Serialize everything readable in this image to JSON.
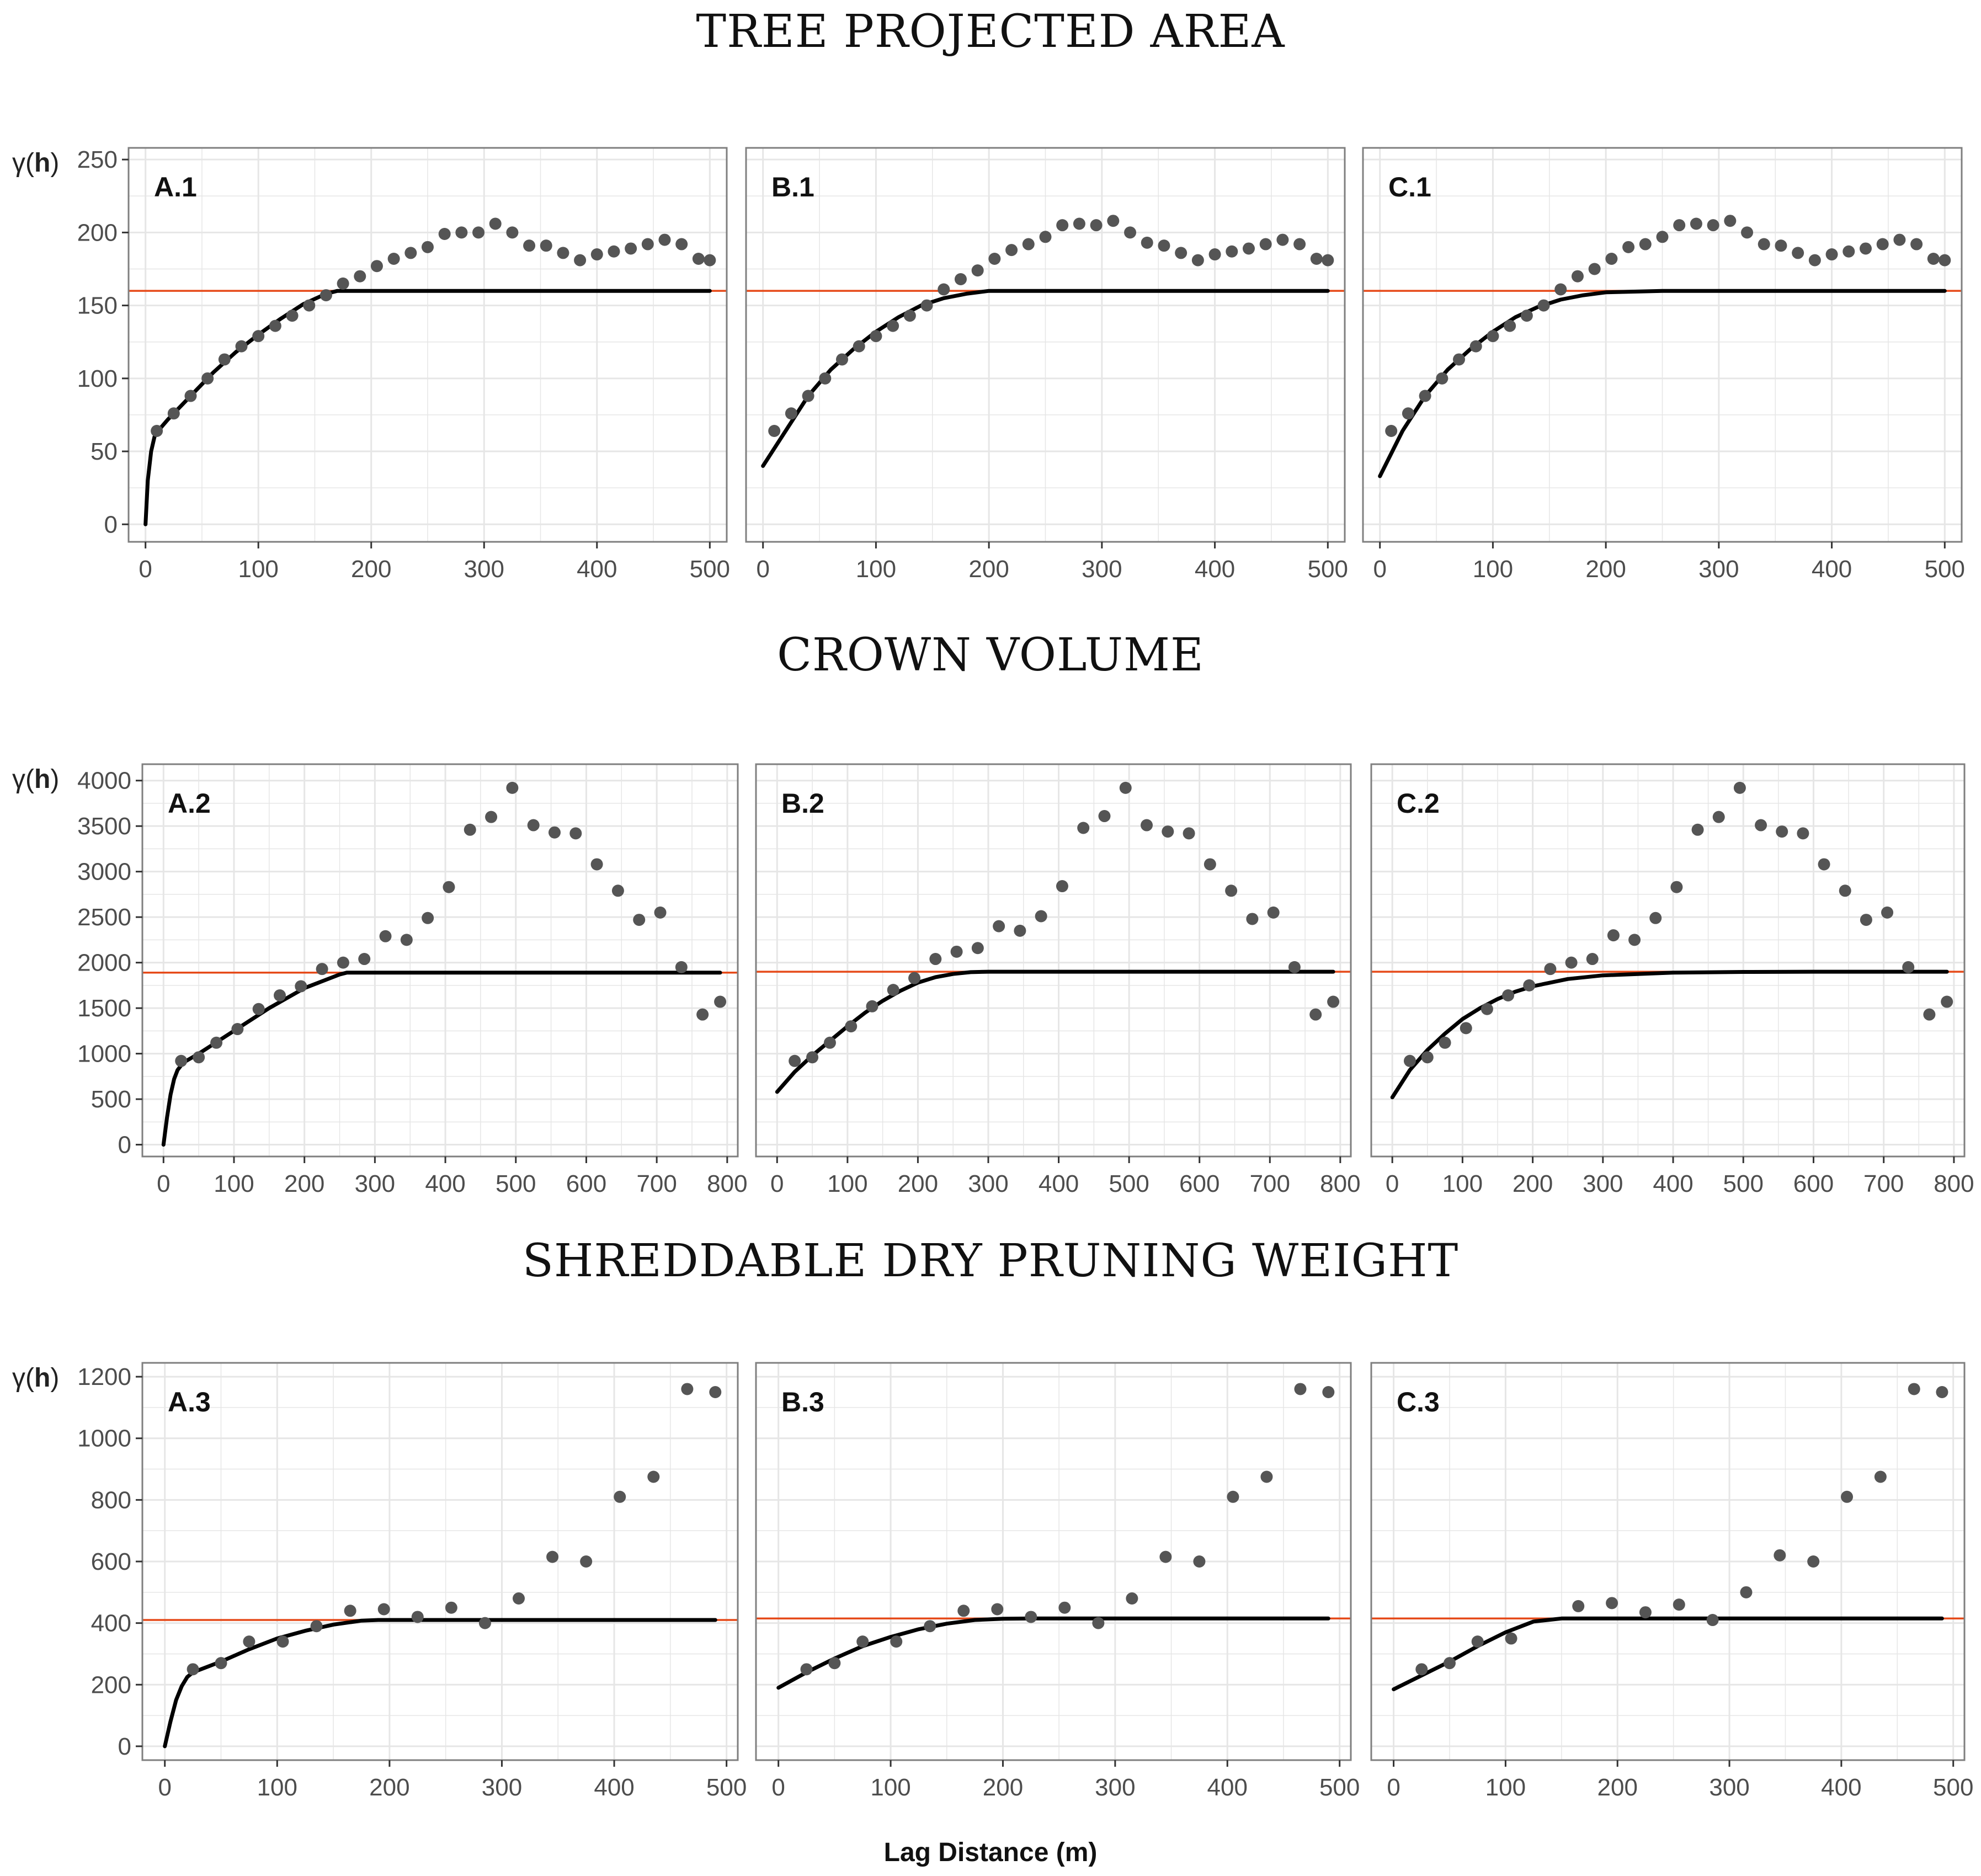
{
  "colors": {
    "points": "#555555",
    "fit": "#000000",
    "sill": "#e64a19",
    "grid": "#e6e6e6",
    "border": "#7f7f7f",
    "text": "#4d4d4d"
  },
  "sections": [
    {
      "title": "TREE PROJECTED AREA",
      "ylabel_prefix": "γ(",
      "ylabel_bold": "h",
      "ylabel_suffix": ")"
    },
    {
      "title": "CROWN VOLUME",
      "ylabel_prefix": "γ(",
      "ylabel_bold": "h",
      "ylabel_suffix": ")"
    },
    {
      "title": "SHREDDABLE DRY PRUNING WEIGHT",
      "ylabel_prefix": "γ(",
      "ylabel_bold": "h",
      "ylabel_suffix": ")"
    }
  ],
  "x_axis_label": "Lag Distance (m)",
  "chart_data": [
    {
      "type": "scatter",
      "title": "A.1",
      "row": 0,
      "col": 0,
      "xlim": [
        -15,
        515
      ],
      "ylim": [
        -12,
        258
      ],
      "xticks": [
        0,
        100,
        200,
        300,
        400,
        500
      ],
      "yticks": [
        0,
        50,
        100,
        150,
        200,
        250
      ],
      "x": [
        10,
        25,
        40,
        55,
        70,
        85,
        100,
        115,
        130,
        145,
        160,
        175,
        190,
        205,
        220,
        235,
        250,
        265,
        280,
        295,
        310,
        325,
        340,
        355,
        370,
        385,
        400,
        415,
        430,
        445,
        460,
        475,
        490,
        500
      ],
      "y": [
        64,
        76,
        88,
        100,
        113,
        122,
        129,
        136,
        143,
        150,
        157,
        165,
        170,
        177,
        182,
        186,
        190,
        199,
        200,
        200,
        206,
        200,
        191,
        191,
        186,
        181,
        185,
        187,
        189,
        192,
        195,
        192,
        182,
        181
      ],
      "sill": 160,
      "fit": {
        "x": [
          0,
          2,
          5,
          8,
          10,
          20,
          40,
          60,
          80,
          100,
          120,
          140,
          160,
          170,
          200,
          300,
          400,
          500
        ],
        "y": [
          0,
          30,
          50,
          60,
          63,
          72,
          88,
          104,
          118,
          130,
          141,
          151,
          158,
          160,
          160,
          160,
          160,
          160
        ]
      }
    },
    {
      "type": "scatter",
      "title": "B.1",
      "row": 0,
      "col": 1,
      "xlim": [
        -15,
        515
      ],
      "ylim": [
        -12,
        258
      ],
      "xticks": [
        0,
        100,
        200,
        300,
        400,
        500
      ],
      "yticks": [
        0,
        50,
        100,
        150,
        200,
        250
      ],
      "x": [
        10,
        25,
        40,
        55,
        70,
        85,
        100,
        115,
        130,
        145,
        160,
        175,
        190,
        205,
        220,
        235,
        250,
        265,
        280,
        295,
        310,
        325,
        340,
        355,
        370,
        385,
        400,
        415,
        430,
        445,
        460,
        475,
        490,
        500
      ],
      "y": [
        64,
        76,
        88,
        100,
        113,
        122,
        129,
        136,
        143,
        150,
        161,
        168,
        174,
        182,
        188,
        192,
        197,
        205,
        206,
        205,
        208,
        200,
        193,
        191,
        186,
        181,
        185,
        187,
        189,
        192,
        195,
        192,
        182,
        181
      ],
      "sill": 160,
      "fit": {
        "x": [
          0,
          20,
          40,
          60,
          80,
          100,
          120,
          140,
          160,
          180,
          200,
          250,
          300,
          400,
          500
        ],
        "y": [
          40,
          64,
          88,
          106,
          120,
          132,
          142,
          150,
          155,
          158,
          160,
          160,
          160,
          160,
          160
        ]
      }
    },
    {
      "type": "scatter",
      "title": "C.1",
      "row": 0,
      "col": 2,
      "xlim": [
        -15,
        515
      ],
      "ylim": [
        -12,
        258
      ],
      "xticks": [
        0,
        100,
        200,
        300,
        400,
        500
      ],
      "yticks": [
        0,
        50,
        100,
        150,
        200,
        250
      ],
      "x": [
        10,
        25,
        40,
        55,
        70,
        85,
        100,
        115,
        130,
        145,
        160,
        175,
        190,
        205,
        220,
        235,
        250,
        265,
        280,
        295,
        310,
        325,
        340,
        355,
        370,
        385,
        400,
        415,
        430,
        445,
        460,
        475,
        490,
        500
      ],
      "y": [
        64,
        76,
        88,
        100,
        113,
        122,
        129,
        136,
        143,
        150,
        161,
        170,
        175,
        182,
        190,
        192,
        197,
        205,
        206,
        205,
        208,
        200,
        192,
        191,
        186,
        181,
        185,
        187,
        189,
        192,
        195,
        192,
        182,
        181
      ],
      "sill": 160,
      "fit": {
        "x": [
          0,
          20,
          40,
          60,
          80,
          100,
          120,
          140,
          160,
          180,
          200,
          250,
          300,
          400,
          500
        ],
        "y": [
          33,
          64,
          88,
          106,
          120,
          132,
          142,
          149,
          154,
          157,
          159,
          160,
          160,
          160,
          160
        ]
      }
    },
    {
      "type": "scatter",
      "title": "A.2",
      "row": 1,
      "col": 0,
      "xlim": [
        -30,
        815
      ],
      "ylim": [
        -130,
        4180
      ],
      "xticks": [
        0,
        100,
        200,
        300,
        400,
        500,
        600,
        700,
        800
      ],
      "yticks": [
        0,
        500,
        1000,
        1500,
        2000,
        2500,
        3000,
        3500,
        4000
      ],
      "x": [
        25,
        50,
        75,
        105,
        135,
        165,
        195,
        225,
        255,
        285,
        315,
        345,
        375,
        405,
        435,
        465,
        495,
        525,
        555,
        585,
        615,
        645,
        675,
        705,
        735,
        765,
        790
      ],
      "y": [
        920,
        960,
        1120,
        1270,
        1490,
        1640,
        1740,
        1930,
        2000,
        2040,
        2290,
        2250,
        2490,
        2830,
        3460,
        3600,
        3920,
        3510,
        3430,
        3420,
        3080,
        2790,
        2470,
        2550,
        1950,
        1430,
        1570
      ],
      "sill": 1890,
      "fit": {
        "x": [
          0,
          5,
          10,
          15,
          20,
          25,
          30,
          50,
          100,
          150,
          200,
          250,
          260,
          300,
          400,
          500,
          600,
          700,
          790
        ],
        "y": [
          0,
          300,
          550,
          720,
          820,
          870,
          910,
          1000,
          1250,
          1500,
          1720,
          1870,
          1890,
          1890,
          1890,
          1890,
          1890,
          1890,
          1890
        ]
      }
    },
    {
      "type": "scatter",
      "title": "B.2",
      "row": 1,
      "col": 1,
      "xlim": [
        -30,
        815
      ],
      "ylim": [
        -130,
        4180
      ],
      "xticks": [
        0,
        100,
        200,
        300,
        400,
        500,
        600,
        700,
        800
      ],
      "yticks": [
        0,
        500,
        1000,
        1500,
        2000,
        2500,
        3000,
        3500,
        4000
      ],
      "x": [
        25,
        50,
        75,
        105,
        135,
        165,
        195,
        225,
        255,
        285,
        315,
        345,
        375,
        405,
        435,
        465,
        495,
        525,
        555,
        585,
        615,
        645,
        675,
        705,
        735,
        765,
        790
      ],
      "y": [
        920,
        960,
        1120,
        1300,
        1520,
        1700,
        1830,
        2040,
        2120,
        2160,
        2400,
        2350,
        2510,
        2840,
        3480,
        3610,
        3920,
        3510,
        3440,
        3420,
        3080,
        2790,
        2480,
        2550,
        1950,
        1430,
        1570
      ],
      "sill": 1900,
      "fit": {
        "x": [
          0,
          25,
          50,
          75,
          100,
          125,
          150,
          175,
          200,
          225,
          250,
          275,
          300,
          400,
          500,
          600,
          700,
          790
        ],
        "y": [
          580,
          800,
          980,
          1140,
          1300,
          1450,
          1580,
          1690,
          1780,
          1840,
          1875,
          1895,
          1900,
          1900,
          1900,
          1900,
          1900,
          1900
        ]
      }
    },
    {
      "type": "scatter",
      "title": "C.2",
      "row": 1,
      "col": 2,
      "xlim": [
        -30,
        815
      ],
      "ylim": [
        -130,
        4180
      ],
      "xticks": [
        0,
        100,
        200,
        300,
        400,
        500,
        600,
        700,
        800
      ],
      "yticks": [
        0,
        500,
        1000,
        1500,
        2000,
        2500,
        3000,
        3500,
        4000
      ],
      "x": [
        25,
        50,
        75,
        105,
        135,
        165,
        195,
        225,
        255,
        285,
        315,
        345,
        375,
        405,
        435,
        465,
        495,
        525,
        555,
        585,
        615,
        645,
        675,
        705,
        735,
        765,
        790
      ],
      "y": [
        920,
        960,
        1120,
        1280,
        1490,
        1640,
        1750,
        1930,
        2000,
        2040,
        2300,
        2250,
        2490,
        2830,
        3460,
        3600,
        3920,
        3510,
        3440,
        3420,
        3080,
        2790,
        2470,
        2550,
        1950,
        1430,
        1570
      ],
      "sill": 1900,
      "fit": {
        "x": [
          0,
          25,
          50,
          75,
          100,
          125,
          150,
          175,
          200,
          250,
          300,
          400,
          500,
          600,
          700,
          790
        ],
        "y": [
          520,
          820,
          1040,
          1220,
          1380,
          1500,
          1600,
          1680,
          1740,
          1820,
          1860,
          1890,
          1898,
          1900,
          1900,
          1900
        ]
      }
    },
    {
      "type": "scatter",
      "title": "A.3",
      "row": 2,
      "col": 0,
      "xlim": [
        -20,
        510
      ],
      "ylim": [
        -45,
        1245
      ],
      "xticks": [
        0,
        100,
        200,
        300,
        400,
        500
      ],
      "yticks": [
        0,
        200,
        400,
        600,
        800,
        1000,
        1200
      ],
      "x": [
        25,
        50,
        75,
        105,
        135,
        165,
        195,
        225,
        255,
        285,
        315,
        345,
        375,
        405,
        435,
        465,
        490
      ],
      "y": [
        250,
        270,
        340,
        340,
        390,
        440,
        445,
        420,
        450,
        400,
        480,
        615,
        600,
        810,
        875,
        1160,
        1150
      ],
      "sill": 410,
      "fit": {
        "x": [
          0,
          5,
          10,
          15,
          20,
          25,
          50,
          75,
          100,
          125,
          150,
          175,
          190,
          250,
          300,
          400,
          490
        ],
        "y": [
          0,
          80,
          150,
          195,
          225,
          240,
          275,
          315,
          350,
          375,
          395,
          408,
          410,
          410,
          410,
          410,
          410
        ]
      }
    },
    {
      "type": "scatter",
      "title": "B.3",
      "row": 2,
      "col": 1,
      "xlim": [
        -20,
        510
      ],
      "ylim": [
        -45,
        1245
      ],
      "xticks": [
        0,
        100,
        200,
        300,
        400,
        500
      ],
      "yticks": [
        0,
        200,
        400,
        600,
        800,
        1000,
        1200
      ],
      "x": [
        25,
        50,
        75,
        105,
        135,
        165,
        195,
        225,
        255,
        285,
        315,
        345,
        375,
        405,
        435,
        465,
        490
      ],
      "y": [
        250,
        270,
        340,
        340,
        390,
        440,
        445,
        420,
        450,
        400,
        480,
        615,
        600,
        810,
        875,
        1160,
        1150
      ],
      "sill": 415,
      "fit": {
        "x": [
          0,
          25,
          50,
          75,
          100,
          125,
          150,
          175,
          200,
          225,
          250,
          300,
          400,
          490
        ],
        "y": [
          190,
          240,
          285,
          325,
          355,
          380,
          398,
          410,
          414,
          415,
          415,
          415,
          415,
          415
        ]
      }
    },
    {
      "type": "scatter",
      "title": "C.3",
      "row": 2,
      "col": 2,
      "xlim": [
        -20,
        510
      ],
      "ylim": [
        -45,
        1245
      ],
      "xticks": [
        0,
        100,
        200,
        300,
        400,
        500
      ],
      "yticks": [
        0,
        200,
        400,
        600,
        800,
        1000,
        1200
      ],
      "x": [
        25,
        50,
        75,
        105,
        165,
        195,
        225,
        255,
        285,
        315,
        345,
        375,
        405,
        435,
        465,
        490
      ],
      "y": [
        250,
        270,
        340,
        350,
        455,
        465,
        435,
        460,
        410,
        500,
        620,
        600,
        810,
        875,
        1160,
        1150
      ],
      "sill": 415,
      "fit": {
        "x": [
          0,
          25,
          50,
          75,
          100,
          125,
          150,
          175,
          200,
          250,
          300,
          400,
          490
        ],
        "y": [
          185,
          230,
          275,
          325,
          370,
          405,
          415,
          415,
          415,
          415,
          415,
          415,
          415
        ]
      }
    }
  ]
}
